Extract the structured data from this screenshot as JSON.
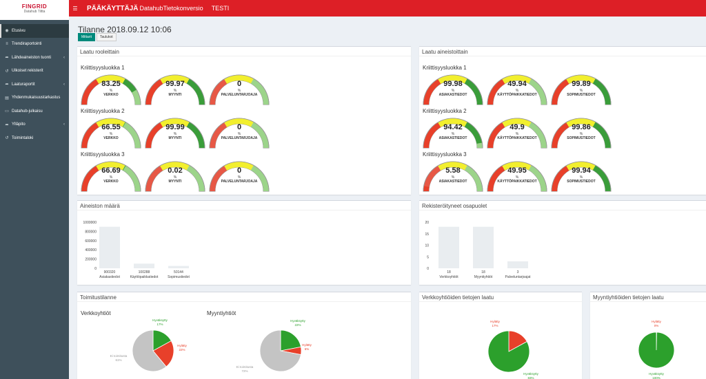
{
  "brand": {
    "name": "FINGRID",
    "sub": "Datahub Tiltta"
  },
  "topbar": {
    "title": "PÄÄKÄYTTÄJÄ",
    "subtitle": "DatahubTietokonversio",
    "env": "TESTI"
  },
  "sidebar": {
    "items": [
      {
        "label": "Etusivu",
        "icon": "dashboard-icon",
        "glyph": "◉",
        "active": true,
        "chev": false
      },
      {
        "label": "Trendiraportointi",
        "icon": "sliders-icon",
        "glyph": "≡",
        "active": false,
        "chev": false
      },
      {
        "label": "Lähdeaineiston tuonti",
        "icon": "share-icon",
        "glyph": "➦",
        "active": false,
        "chev": true
      },
      {
        "label": "Ulkoiset rekisterit",
        "icon": "undo-icon",
        "glyph": "↺",
        "active": false,
        "chev": false
      },
      {
        "label": "Laaturaportit",
        "icon": "share-icon",
        "glyph": "➦",
        "active": false,
        "chev": true
      },
      {
        "label": "Yhdenmukaisuustarkastus",
        "icon": "database-icon",
        "glyph": "▤",
        "active": false,
        "chev": false
      },
      {
        "label": "Datahub-julkaisu",
        "icon": "file-icon",
        "glyph": "▭",
        "active": false,
        "chev": false
      },
      {
        "label": "Ylläpito",
        "icon": "share-icon",
        "glyph": "➦",
        "active": false,
        "chev": true
      },
      {
        "label": "Toimintaloki",
        "icon": "history-icon",
        "glyph": "↺",
        "active": false,
        "chev": false
      }
    ]
  },
  "page": {
    "title": "Tilanne 2018.09.12 10:06",
    "btn_meters": "Mittarit",
    "btn_tables": "Taulukot"
  },
  "quality_roles": {
    "title": "Laatu rooleittain",
    "groups": [
      {
        "label": "Kriittisyysluokka 1",
        "gauges": [
          {
            "value": "83.25",
            "pct": 83.25,
            "label": "VERKKO"
          },
          {
            "value": "99.97",
            "pct": 99.97,
            "label": "MYYNTI"
          },
          {
            "value": "0",
            "pct": 0,
            "label": "PALVELUNTARJOAJA"
          }
        ]
      },
      {
        "label": "Kriittisyysluokka 2",
        "gauges": [
          {
            "value": "66.55",
            "pct": 66.55,
            "label": "VERKKO"
          },
          {
            "value": "99.99",
            "pct": 99.99,
            "label": "MYYNTI"
          },
          {
            "value": "0",
            "pct": 0,
            "label": "PALVELUNTARJOAJA"
          }
        ]
      },
      {
        "label": "Kriittisyysluokka 3",
        "gauges": [
          {
            "value": "66.69",
            "pct": 66.69,
            "label": "VERKKO"
          },
          {
            "value": "0.02",
            "pct": 0.02,
            "label": "MYYNTI"
          },
          {
            "value": "0",
            "pct": 0,
            "label": "PALVELUNTARJOAJA"
          }
        ]
      }
    ]
  },
  "quality_data": {
    "title": "Laatu aineistoittain",
    "groups": [
      {
        "label": "Kriittisyysluokka 1",
        "gauges": [
          {
            "value": "99.98",
            "pct": 99.98,
            "label": "ASIAKASTIEDOT"
          },
          {
            "value": "49.94",
            "pct": 49.94,
            "label": "KÄYTTÖPAIKKATIEDOT"
          },
          {
            "value": "99.89",
            "pct": 99.89,
            "label": "SOPIMUSTIEDOT"
          }
        ]
      },
      {
        "label": "Kriittisyysluokka 2",
        "gauges": [
          {
            "value": "94.42",
            "pct": 94.42,
            "label": "ASIAKASTIEDOT"
          },
          {
            "value": "49.9",
            "pct": 49.9,
            "label": "KÄYTTÖPAIKKATIEDOT"
          },
          {
            "value": "99.86",
            "pct": 99.86,
            "label": "SOPIMUSTIEDOT"
          }
        ]
      },
      {
        "label": "Kriittisyysluokka 3",
        "gauges": [
          {
            "value": "5.58",
            "pct": 5.58,
            "label": "ASIAKASTIEDOT"
          },
          {
            "value": "49.95",
            "pct": 49.95,
            "label": "KÄYTTÖPAIKKATIEDOT"
          },
          {
            "value": "99.94",
            "pct": 99.94,
            "label": "SOPIMUSTIEDOT"
          }
        ]
      }
    ]
  },
  "pct_symbol": "%",
  "colors": {
    "red": "#e8402a",
    "yellow": "#f5f10e",
    "lightgreen": "#8fd17a",
    "green": "#3a9d3a",
    "track": "#e5e5e5",
    "bar": "#e9edf0"
  },
  "volume": {
    "title": "Aineiston määrä"
  },
  "parties": {
    "title": "Rekisteröityneet osapuolet"
  },
  "operations": {
    "title": "Toimitustilanne",
    "network_label": "Verkkoyhtiöt",
    "sales_label": "Myyntiyhtiöt"
  },
  "network_quality": {
    "title": "Verkkoyhtiöiden tietojen laatu"
  },
  "sales_quality": {
    "title": "Myyntiyhtiöiden tietojen laatu"
  },
  "chart_data": [
    {
      "type": "bar",
      "title": "Aineiston määrä",
      "categories": [
        "Asiakastiedot",
        "Käyttöpaikkatiedot",
        "Sopimustiedot"
      ],
      "values": [
        900320,
        100288,
        50144
      ],
      "value_labels": [
        "900320",
        "100288",
        "50144"
      ],
      "yticks": [
        "1000000",
        "800000",
        "600000",
        "400000",
        "200000",
        "0"
      ],
      "ylim": [
        0,
        1000000
      ]
    },
    {
      "type": "bar",
      "title": "Rekisteröityneet osapuolet",
      "categories": [
        "Verkkoyhtiöt",
        "Myyntiyhtiöt",
        "Palveluntarjoajat"
      ],
      "values": [
        18,
        18,
        3
      ],
      "value_labels": [
        "18",
        "18",
        "3"
      ],
      "yticks": [
        "20",
        "15",
        "10",
        "5",
        "0"
      ],
      "ylim": [
        0,
        20
      ]
    },
    {
      "type": "pie",
      "title": "Verkkoyhtiöt",
      "slices": [
        {
          "name": "Hyväksytty",
          "pct_label": "17%",
          "value": 17,
          "color": "#2ca02c"
        },
        {
          "name": "Hylätty",
          "pct_label": "22%",
          "value": 22,
          "color": "#e8402a"
        },
        {
          "name": "Ei toimitusta",
          "pct_label": "61%",
          "value": 61,
          "color": "#c4c4c4"
        }
      ]
    },
    {
      "type": "pie",
      "title": "Myyntiyhtiöt",
      "slices": [
        {
          "name": "Hyväksytty",
          "pct_label": "22%",
          "value": 22,
          "color": "#2ca02c"
        },
        {
          "name": "Hylätty",
          "pct_label": "6%",
          "value": 6,
          "color": "#e8402a"
        },
        {
          "name": "Ei toimitusta",
          "pct_label": "72%",
          "value": 72,
          "color": "#c4c4c4"
        }
      ]
    },
    {
      "type": "pie",
      "title": "Verkkoyhtiöiden tietojen laatu",
      "slices": [
        {
          "name": "Hylätty",
          "pct_label": "17%",
          "value": 17,
          "color": "#e8402a"
        },
        {
          "name": "Hyväksytty",
          "pct_label": "83%",
          "value": 83,
          "color": "#2ca02c"
        }
      ]
    },
    {
      "type": "pie",
      "title": "Myyntiyhtiöiden tietojen laatu",
      "slices": [
        {
          "name": "Hylätty",
          "pct_label": "0%",
          "value": 0.3,
          "color": "#e8402a"
        },
        {
          "name": "Hyväksytty",
          "pct_label": "100%",
          "value": 99.7,
          "color": "#2ca02c"
        }
      ]
    }
  ]
}
